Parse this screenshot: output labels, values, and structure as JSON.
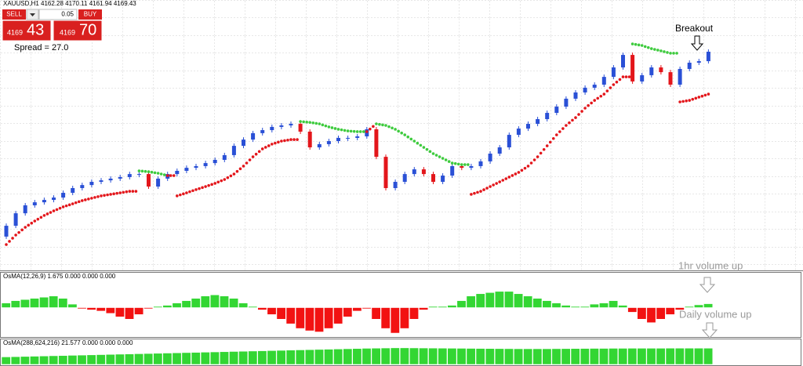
{
  "chart_data": [
    {
      "type": "candlestick",
      "title": "XAUUSD,H1  4162.28 4170.11 4161.94 4169.43",
      "ylim": [
        4040,
        4200
      ],
      "up_color": "#2a50d6",
      "down_color": "#e3161b",
      "sar_up_color": "#e3161b",
      "sar_down_color": "#3ecb3e",
      "first_open": 4060,
      "values": [
        4066.4,
        4073.8,
        4078.5,
        4080.3,
        4081.7,
        4083.1,
        4085.9,
        4088.7,
        4090.5,
        4092.4,
        4093.3,
        4094.3,
        4095.2,
        4097.0,
        4097.0,
        4089.6,
        4094.3,
        4097.0,
        4098.9,
        4100.7,
        4101.7,
        4103.5,
        4105.4,
        4108.2,
        4113.7,
        4117.4,
        4121.2,
        4123.0,
        4124.9,
        4125.8,
        4126.7,
        4122.1,
        4112.8,
        4114.7,
        4116.5,
        4118.4,
        4118.4,
        4119.3,
        4123.5,
        4107.2,
        4088.7,
        4092.4,
        4097.0,
        4099.8,
        4097.0,
        4092.4,
        4096.1,
        4101.7,
        4100.7,
        4101.7,
        4104.5,
        4109.1,
        4112.8,
        4120.2,
        4123.9,
        4126.7,
        4129.5,
        4133.2,
        4136.9,
        4141.6,
        4145.3,
        4148.1,
        4149.9,
        4154.5,
        4160.1,
        4167.5,
        4151.8,
        4155.5,
        4160.1,
        4157.3,
        4149.9,
        4159.2,
        4162.9,
        4163.8,
        4169.4
      ],
      "sar": [
        4055.3,
        4060.9,
        4065.5,
        4069.2,
        4072.5,
        4075.2,
        4077.6,
        4079.4,
        4081.3,
        4082.7,
        4084.1,
        4085.0,
        4085.9,
        4086.8,
        4098.9,
        4098.4,
        4097.5,
        4096.1,
        4084.1,
        4085.9,
        4087.8,
        4089.6,
        4091.5,
        4093.8,
        4097.0,
        4101.7,
        4107.2,
        4111.9,
        4114.7,
        4116.5,
        4117.4,
        4128.1,
        4127.6,
        4126.7,
        4124.9,
        4123.5,
        4122.5,
        4122.1,
        4122.1,
        4126.7,
        4125.8,
        4123.5,
        4120.2,
        4116.5,
        4112.8,
        4109.1,
        4106.3,
        4103.5,
        4102.6,
        4085.0,
        4086.8,
        4089.6,
        4092.4,
        4095.2,
        4098.0,
        4101.7,
        4107.2,
        4113.7,
        4120.2,
        4125.8,
        4130.4,
        4136.0,
        4140.6,
        4144.3,
        4149.9,
        4154.5,
        4174.0,
        4173.1,
        4171.2,
        4169.9,
        4168.5,
        4139.7,
        4140.6,
        4142.5,
        4144.3
      ],
      "annotation": "Breakout"
    },
    {
      "type": "bar",
      "title": "OsMA(12,26,9) 1.675 0.000 0.000 0.000",
      "ylim": [
        -12,
        12
      ],
      "pos_color": "#33d633",
      "neg_color": "#f21212",
      "values": [
        2,
        3,
        3.5,
        4,
        4.5,
        5,
        4,
        1.5,
        -0.5,
        -1,
        -1.5,
        -2.5,
        -4,
        -5,
        -3,
        -0.5,
        0.5,
        1,
        2,
        3,
        4,
        5,
        5.5,
        5,
        4,
        2,
        0.5,
        -1,
        -3,
        -5,
        -7,
        -9,
        -10,
        -10.5,
        -9,
        -7,
        -4,
        -1.5,
        -0.5,
        -5,
        -9,
        -11,
        -9,
        -5,
        -1,
        0.5,
        0.5,
        1,
        3,
        5,
        6,
        6.5,
        7,
        7,
        6,
        5,
        4,
        3,
        2,
        1,
        0.5,
        0.5,
        1.5,
        2,
        3,
        1,
        -2,
        -5,
        -6.5,
        -5,
        -3,
        -1,
        0.5,
        1.2,
        1.675
      ],
      "annotation": "1hr volume up"
    },
    {
      "type": "bar",
      "title": "OsMA(288,624,216) 21.577 0.000 0.000 0.000",
      "ylim": [
        0,
        26
      ],
      "pos_color": "#33d633",
      "neg_color": "#f21212",
      "values": [
        10,
        10.3,
        10.6,
        10.9,
        11.2,
        11.5,
        11.8,
        12.1,
        12.4,
        12.7,
        13,
        13.3,
        13.6,
        13.9,
        14.2,
        14.5,
        14.8,
        15.1,
        15.4,
        15.7,
        16,
        16.3,
        16.6,
        16.9,
        17.2,
        17.5,
        17.8,
        18.1,
        18.4,
        18.7,
        19,
        19.3,
        19.6,
        19.9,
        20.2,
        20.5,
        20.8,
        21.1,
        21.4,
        21.6,
        21.8,
        22,
        22,
        21.9,
        21.8,
        21.7,
        21.6,
        21.5,
        21.4,
        21.3,
        21.2,
        21.1,
        21,
        20.9,
        20.8,
        20.8,
        20.8,
        20.8,
        20.9,
        21,
        21.1,
        21.2,
        21.3,
        21.3,
        21.4,
        21.4,
        21.5,
        21.5,
        21.5,
        21.5,
        21.6,
        21.6,
        21.6,
        21.6,
        21.577
      ],
      "annotation": "Daily volume up"
    }
  ],
  "trade_panel": {
    "sell": "SELL",
    "buy": "BUY",
    "lot": "0.05",
    "sell_big": "4169",
    "sell_pips": "43",
    "buy_big": "4169",
    "buy_pips": "70",
    "spread": "Spread = 27.0"
  }
}
